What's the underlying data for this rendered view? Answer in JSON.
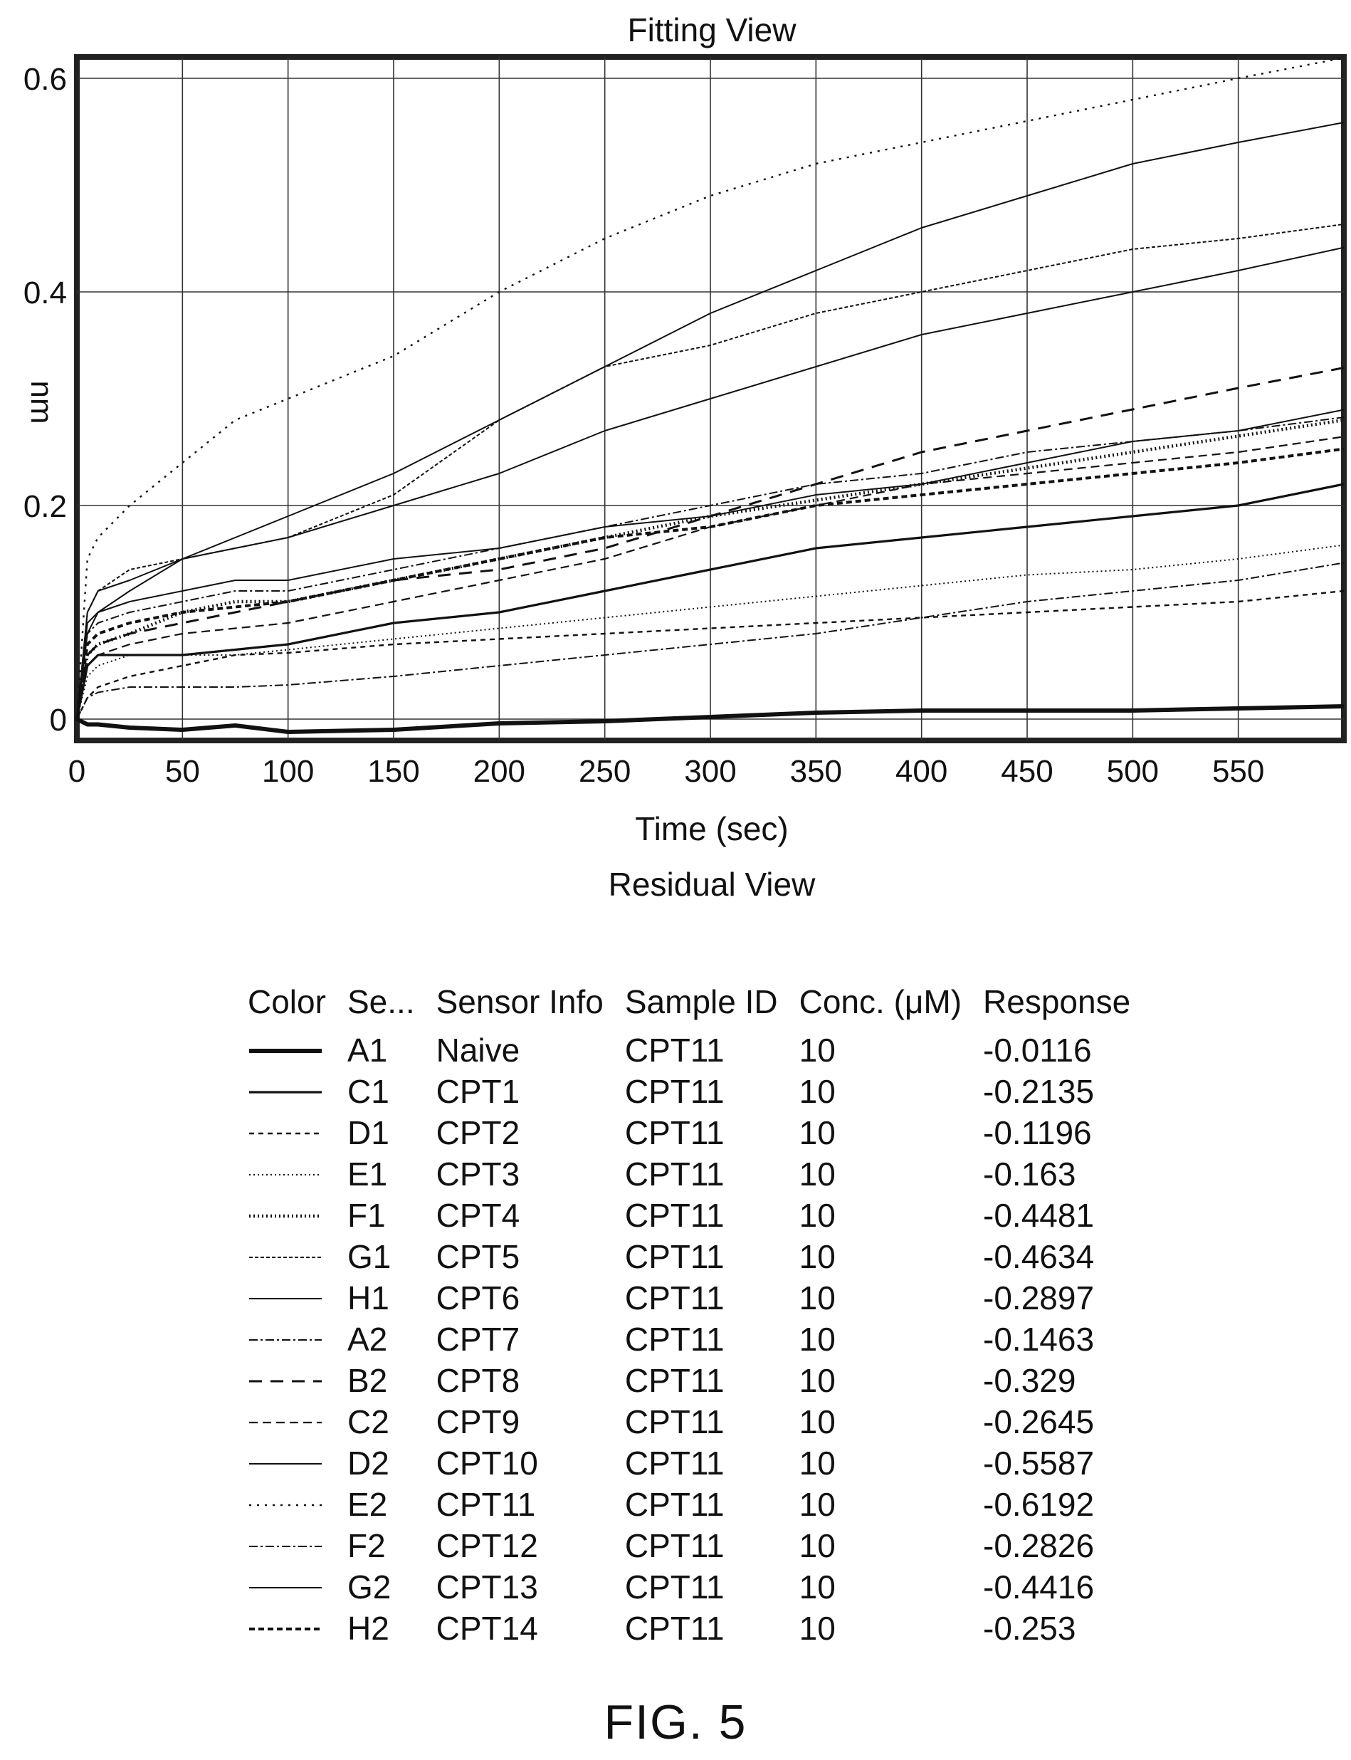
{
  "chart_data": {
    "type": "line",
    "title": "Fitting View",
    "xlabel": "Time (sec)",
    "ylabel": "nm",
    "subtitle_below": "Residual View",
    "xlim": [
      0,
      600
    ],
    "ylim": [
      -0.02,
      0.62
    ],
    "xticks": [
      0,
      50,
      100,
      150,
      200,
      250,
      300,
      350,
      400,
      450,
      500,
      550
    ],
    "yticks": [
      0,
      0.2,
      0.4,
      0.6
    ],
    "ytick_labels": [
      "0",
      "0.2",
      "0.4",
      "0.6"
    ],
    "grid": true,
    "x": [
      0,
      5,
      10,
      25,
      50,
      75,
      100,
      150,
      200,
      250,
      300,
      350,
      400,
      450,
      500,
      550,
      600
    ],
    "series": [
      {
        "name": "A1",
        "style": "thick-solid",
        "values": [
          0,
          -0.005,
          -0.005,
          -0.008,
          -0.01,
          -0.006,
          -0.012,
          -0.01,
          -0.004,
          -0.002,
          0.002,
          0.006,
          0.008,
          0.008,
          0.008,
          0.01,
          0.012
        ]
      },
      {
        "name": "C1",
        "style": "solid-medium",
        "values": [
          0,
          0.05,
          0.06,
          0.06,
          0.06,
          0.065,
          0.07,
          0.09,
          0.1,
          0.12,
          0.14,
          0.16,
          0.17,
          0.18,
          0.19,
          0.2,
          0.22
        ]
      },
      {
        "name": "D1",
        "style": "dashed-short",
        "values": [
          0,
          0.02,
          0.03,
          0.04,
          0.05,
          0.06,
          0.062,
          0.07,
          0.075,
          0.08,
          0.085,
          0.09,
          0.095,
          0.1,
          0.105,
          0.11,
          0.12
        ]
      },
      {
        "name": "E1",
        "style": "dotted-fine",
        "values": [
          0,
          0.04,
          0.05,
          0.06,
          0.06,
          0.06,
          0.065,
          0.075,
          0.085,
          0.095,
          0.105,
          0.115,
          0.125,
          0.135,
          0.14,
          0.15,
          0.163
        ]
      },
      {
        "name": "F1",
        "style": "dotted-bold",
        "values": [
          0,
          0.06,
          0.07,
          0.08,
          0.1,
          0.11,
          0.11,
          0.13,
          0.15,
          0.17,
          0.19,
          0.205,
          0.22,
          0.235,
          0.25,
          0.265,
          0.28
        ]
      },
      {
        "name": "G1",
        "style": "dashed-fine",
        "values": [
          0,
          0.1,
          0.12,
          0.14,
          0.15,
          0.16,
          0.17,
          0.21,
          0.28,
          0.33,
          0.35,
          0.38,
          0.4,
          0.42,
          0.44,
          0.45,
          0.4634
        ]
      },
      {
        "name": "H1",
        "style": "solid-thin",
        "values": [
          0,
          0.09,
          0.1,
          0.11,
          0.12,
          0.13,
          0.13,
          0.15,
          0.16,
          0.18,
          0.19,
          0.21,
          0.22,
          0.24,
          0.26,
          0.27,
          0.2897
        ]
      },
      {
        "name": "A2",
        "style": "dashdot-fine",
        "values": [
          0,
          0.02,
          0.025,
          0.03,
          0.03,
          0.03,
          0.032,
          0.04,
          0.05,
          0.06,
          0.07,
          0.08,
          0.095,
          0.11,
          0.12,
          0.13,
          0.1463
        ]
      },
      {
        "name": "B2",
        "style": "dashed-long",
        "values": [
          0,
          0.06,
          0.07,
          0.08,
          0.09,
          0.1,
          0.11,
          0.13,
          0.14,
          0.16,
          0.19,
          0.22,
          0.25,
          0.27,
          0.29,
          0.31,
          0.329
        ]
      },
      {
        "name": "C2",
        "style": "dashed-medium",
        "values": [
          0,
          0.05,
          0.06,
          0.07,
          0.08,
          0.085,
          0.09,
          0.11,
          0.13,
          0.15,
          0.18,
          0.2,
          0.22,
          0.23,
          0.24,
          0.25,
          0.2645
        ]
      },
      {
        "name": "D2",
        "style": "solid-thin",
        "values": [
          0,
          0.1,
          0.12,
          0.13,
          0.15,
          0.17,
          0.19,
          0.23,
          0.28,
          0.33,
          0.38,
          0.42,
          0.46,
          0.49,
          0.52,
          0.54,
          0.5587
        ]
      },
      {
        "name": "E2",
        "style": "dotted-sparse",
        "values": [
          0,
          0.15,
          0.17,
          0.2,
          0.24,
          0.28,
          0.3,
          0.34,
          0.4,
          0.45,
          0.49,
          0.52,
          0.54,
          0.56,
          0.58,
          0.6,
          0.6192
        ]
      },
      {
        "name": "F2",
        "style": "dashdot-fine",
        "values": [
          0,
          0.08,
          0.09,
          0.1,
          0.11,
          0.12,
          0.12,
          0.14,
          0.16,
          0.18,
          0.2,
          0.22,
          0.23,
          0.25,
          0.26,
          0.27,
          0.2826
        ]
      },
      {
        "name": "G2",
        "style": "solid-thin",
        "values": [
          0,
          0.08,
          0.1,
          0.12,
          0.15,
          0.16,
          0.17,
          0.2,
          0.23,
          0.27,
          0.3,
          0.33,
          0.36,
          0.38,
          0.4,
          0.42,
          0.4416
        ]
      },
      {
        "name": "H2",
        "style": "dashed-bold",
        "values": [
          0,
          0.07,
          0.08,
          0.09,
          0.1,
          0.105,
          0.11,
          0.13,
          0.15,
          0.17,
          0.18,
          0.2,
          0.21,
          0.22,
          0.23,
          0.24,
          0.253
        ]
      }
    ]
  },
  "legend": {
    "headers": [
      "Color",
      "Se...",
      "Sensor Info",
      "Sample ID",
      "Conc. (μM)",
      "Response"
    ],
    "rows": [
      {
        "style": "thick-solid",
        "sensor": "A1",
        "info": "Naive",
        "sample": "CPT11",
        "conc": "10",
        "response": "-0.0116"
      },
      {
        "style": "solid-medium",
        "sensor": "C1",
        "info": "CPT1",
        "sample": "CPT11",
        "conc": "10",
        "response": "-0.2135"
      },
      {
        "style": "dashed-short",
        "sensor": "D1",
        "info": "CPT2",
        "sample": "CPT11",
        "conc": "10",
        "response": "-0.1196"
      },
      {
        "style": "dotted-fine",
        "sensor": "E1",
        "info": "CPT3",
        "sample": "CPT11",
        "conc": "10",
        "response": "-0.163"
      },
      {
        "style": "dotted-bold",
        "sensor": "F1",
        "info": "CPT4",
        "sample": "CPT11",
        "conc": "10",
        "response": "-0.4481"
      },
      {
        "style": "dashed-fine",
        "sensor": "G1",
        "info": "CPT5",
        "sample": "CPT11",
        "conc": "10",
        "response": "-0.4634"
      },
      {
        "style": "solid-thin",
        "sensor": "H1",
        "info": "CPT6",
        "sample": "CPT11",
        "conc": "10",
        "response": "-0.2897"
      },
      {
        "style": "dashdot-fine",
        "sensor": "A2",
        "info": "CPT7",
        "sample": "CPT11",
        "conc": "10",
        "response": "-0.1463"
      },
      {
        "style": "dashed-long",
        "sensor": "B2",
        "info": "CPT8",
        "sample": "CPT11",
        "conc": "10",
        "response": "-0.329"
      },
      {
        "style": "dashed-medium",
        "sensor": "C2",
        "info": "CPT9",
        "sample": "CPT11",
        "conc": "10",
        "response": "-0.2645"
      },
      {
        "style": "solid-thin",
        "sensor": "D2",
        "info": "CPT10",
        "sample": "CPT11",
        "conc": "10",
        "response": "-0.5587"
      },
      {
        "style": "dotted-sparse",
        "sensor": "E2",
        "info": "CPT11",
        "sample": "CPT11",
        "conc": "10",
        "response": "-0.6192"
      },
      {
        "style": "dashdot-fine",
        "sensor": "F2",
        "info": "CPT12",
        "sample": "CPT11",
        "conc": "10",
        "response": "-0.2826"
      },
      {
        "style": "solid-thin",
        "sensor": "G2",
        "info": "CPT13",
        "sample": "CPT11",
        "conc": "10",
        "response": "-0.4416"
      },
      {
        "style": "dashed-bold",
        "sensor": "H2",
        "info": "CPT14",
        "sample": "CPT11",
        "conc": "10",
        "response": "-0.253"
      }
    ]
  },
  "figure_label": "FIG. 5"
}
